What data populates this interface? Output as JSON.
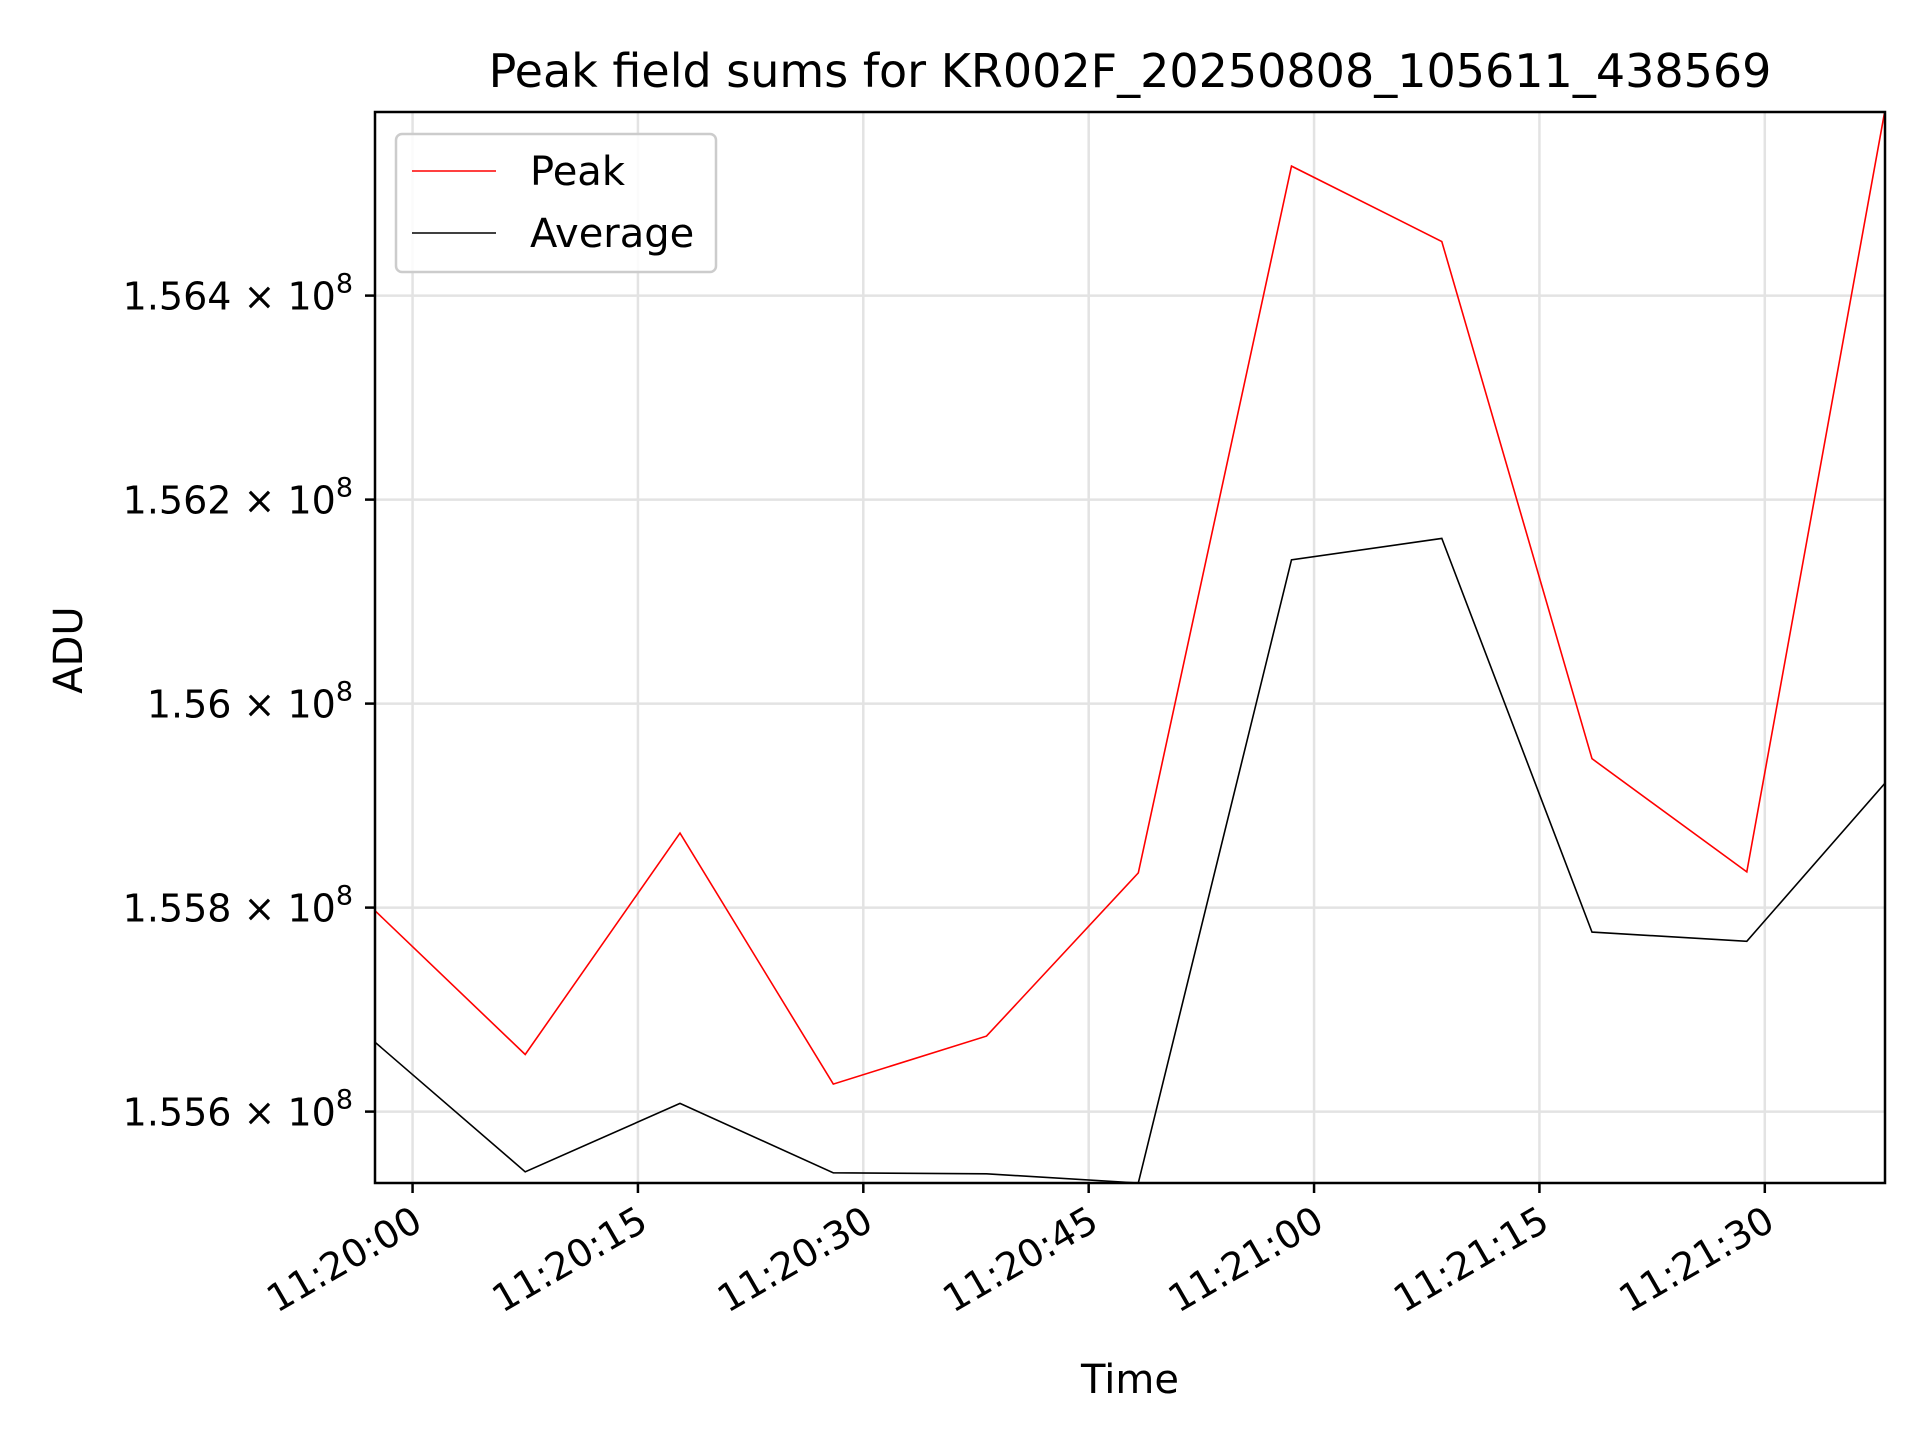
{
  "chart_data": {
    "type": "line",
    "title": "Peak field sums for KR002F_20250808_105611_438569",
    "xlabel": "Time",
    "ylabel": "ADU",
    "xlim": [
      "11:19:57.5",
      "11:21:38"
    ],
    "ylim": [
      155530000,
      156580000
    ],
    "x_ticks": [
      "11:20:00",
      "11:20:15",
      "11:20:30",
      "11:20:45",
      "11:21:00",
      "11:21:15",
      "11:21:30"
    ],
    "y_ticks": [
      {
        "value": 155600000,
        "mantissa": "1.556",
        "exponent": "8"
      },
      {
        "value": 155800000,
        "mantissa": "1.558",
        "exponent": "8"
      },
      {
        "value": 156000000,
        "mantissa": "1.56",
        "exponent": "8"
      },
      {
        "value": 156200000,
        "mantissa": "1.562",
        "exponent": "8"
      },
      {
        "value": 156400000,
        "mantissa": "1.564",
        "exponent": "8"
      }
    ],
    "y_tick_multiplier": "× 10",
    "grid": true,
    "legend_position": "top-left",
    "x": [
      "11:19:57.5",
      "11:20:07.5",
      "11:20:17.8",
      "11:20:28",
      "11:20:38.2",
      "11:20:48.3",
      "11:20:58.5",
      "11:21:08.5",
      "11:21:18.5",
      "11:21:28.8",
      "11:21:38"
    ],
    "series": [
      {
        "name": "Peak",
        "color": "#ff0000",
        "values": [
          155797000,
          155656000,
          155873000,
          155627000,
          155674000,
          155834000,
          156527000,
          156453000,
          155946000,
          155835000,
          156582000
        ]
      },
      {
        "name": "Average",
        "color": "#000000",
        "values": [
          155668000,
          155541000,
          155608000,
          155540000,
          155539000,
          155530000,
          156141000,
          156162000,
          155776000,
          155767000,
          155922000
        ]
      }
    ]
  }
}
